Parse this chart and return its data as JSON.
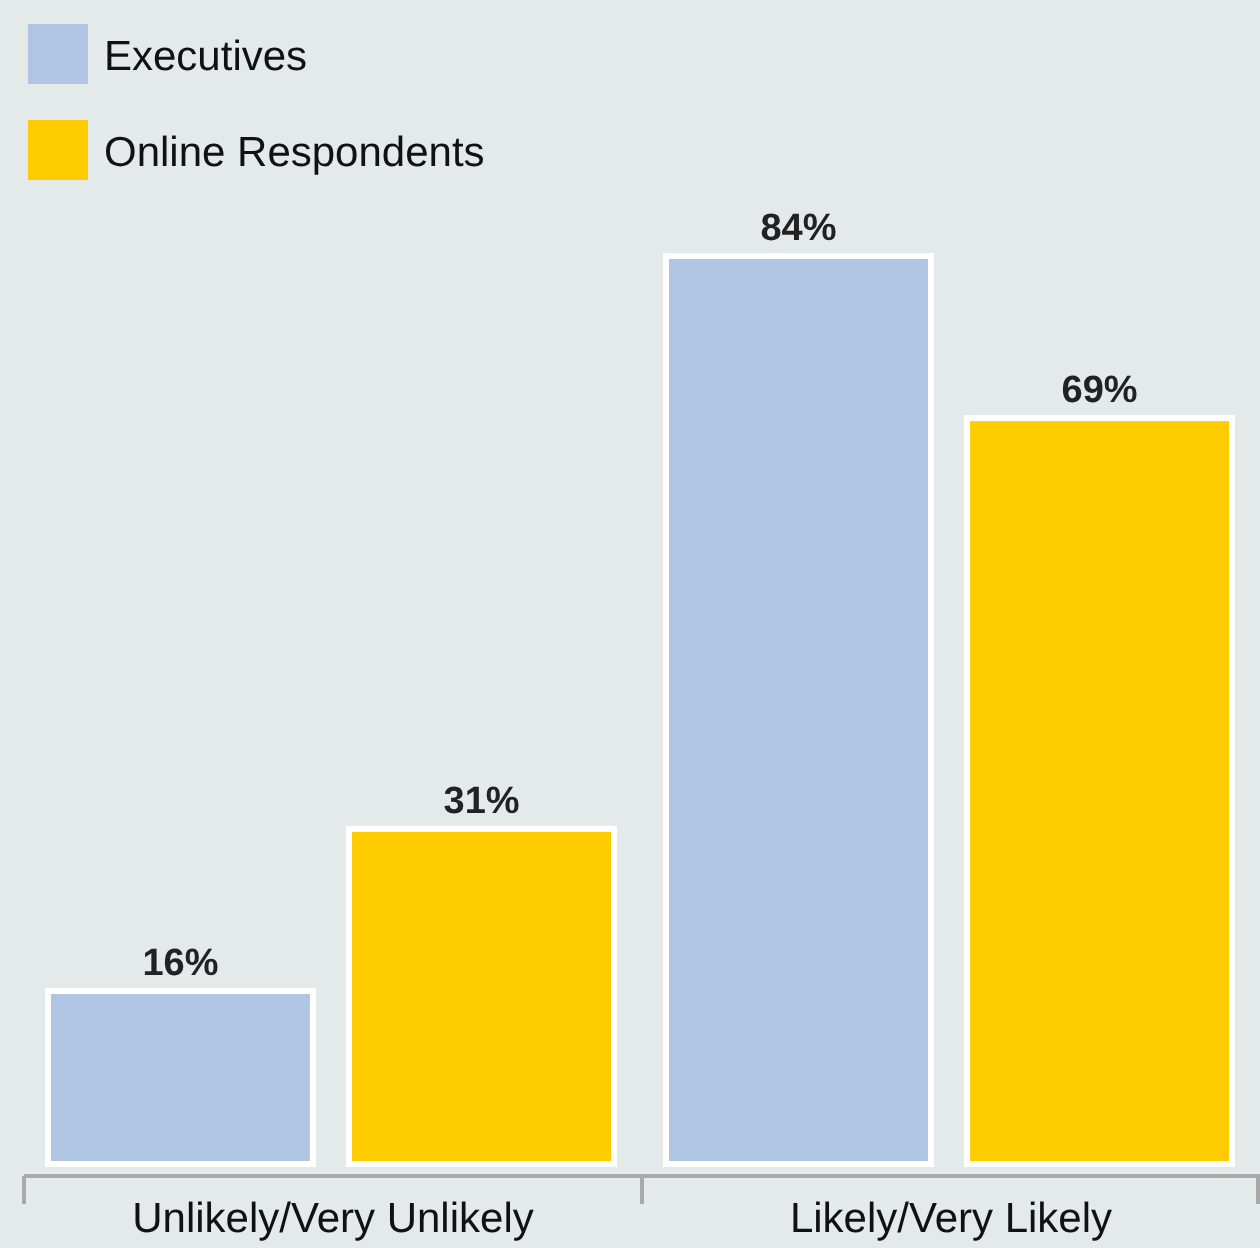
{
  "chart_data": {
    "type": "bar",
    "categories": [
      "Unlikely/Very Unlikely",
      "Likely/Very Likely"
    ],
    "series": [
      {
        "name": "Executives",
        "color": "#b0c4e4",
        "values": [
          16,
          84
        ],
        "value_labels": [
          "16%",
          "84%"
        ]
      },
      {
        "name": "Online Respondents",
        "color": "#ffcc00",
        "values": [
          31,
          69
        ],
        "value_labels": [
          "31%",
          "69%"
        ]
      }
    ],
    "legend": "top left"
  }
}
